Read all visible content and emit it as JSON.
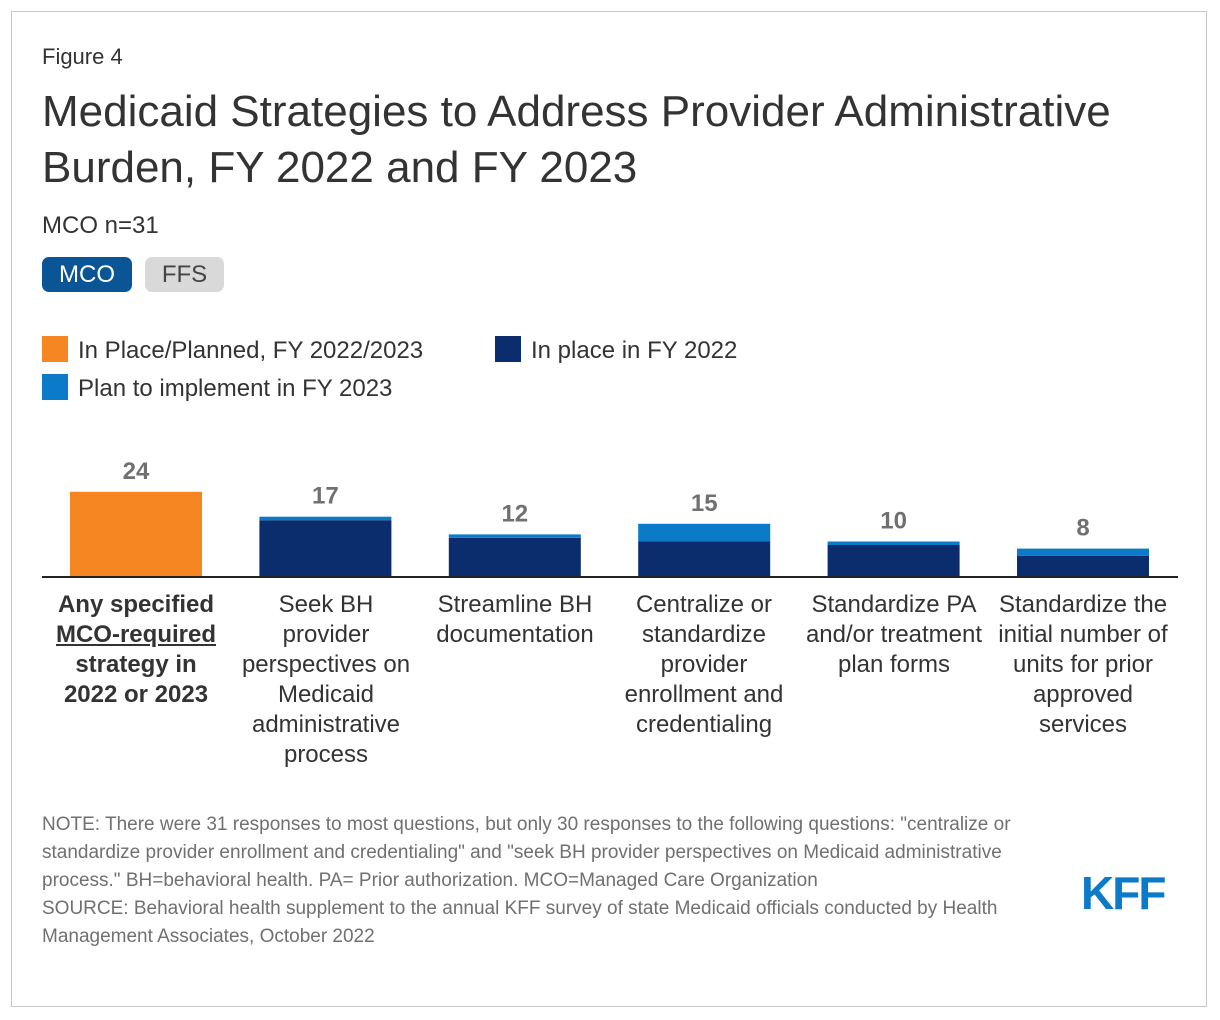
{
  "figure_label": "Figure 4",
  "title": "Medicaid Strategies to Address Provider Administrative Burden, FY 2022 and FY 2023",
  "subtitle": "MCO n=31",
  "toggles": {
    "active": "MCO",
    "inactive": "FFS"
  },
  "legend": [
    {
      "label": "In Place/Planned, FY 2022/2023",
      "color": "#f68621"
    },
    {
      "label": "In place in FY 2022",
      "color": "#0b2d6e"
    },
    {
      "label": "Plan to implement in FY 2023",
      "color": "#0a7ac9"
    }
  ],
  "chart_data": {
    "type": "bar",
    "stacked": true,
    "categories": [
      "Any specified MCO-required strategy in 2022 or 2023",
      "Seek BH provider perspectives on Medicaid administrative process",
      "Streamline BH documentation",
      "Centralize or standardize provider enrollment and credentialing",
      "Standardize PA and/or treatment plan forms",
      "Standardize the initial number of units for prior approved services"
    ],
    "series": [
      {
        "name": "In Place/Planned, FY 2022/2023",
        "color": "#f68621",
        "values": [
          24,
          null,
          null,
          null,
          null,
          null
        ]
      },
      {
        "name": "In place in FY 2022",
        "color": "#0b2d6e",
        "values": [
          null,
          16,
          11,
          10,
          9,
          6
        ]
      },
      {
        "name": "Plan to implement in FY 2023",
        "color": "#0a7ac9",
        "values": [
          null,
          1,
          1,
          5,
          1,
          2
        ]
      }
    ],
    "totals": [
      24,
      17,
      12,
      15,
      10,
      8
    ],
    "total_labels": [
      "24",
      "17",
      "12",
      "15",
      "10",
      "8"
    ],
    "ylim": [
      0,
      31
    ],
    "xlabel": "",
    "ylabel": ""
  },
  "category_labels": {
    "first_line1": "Any specified",
    "first_link": "MCO-required",
    "first_line2": "strategy in 2022 or 2023",
    "c2": "Seek BH provider perspectives on Medicaid administrative process",
    "c3": "Streamline BH documentation",
    "c4": "Centralize or standardize provider enrollment and credentialing",
    "c5": "Standardize PA and/or treatment plan forms",
    "c6": "Standardize the initial number of units for prior approved services"
  },
  "note": "NOTE: There were 31 responses to most questions, but only 30 responses to the following questions: \"centralize or standardize provider enrollment and credentialing\" and \"seek BH provider perspectives on Medicaid administrative process.\" BH=behavioral health. PA= Prior authorization. MCO=Managed Care Organization",
  "source": "SOURCE: Behavioral health supplement to the annual KFF survey of state Medicaid officials conducted by Health Management Associates, October 2022",
  "logo": "KFF"
}
